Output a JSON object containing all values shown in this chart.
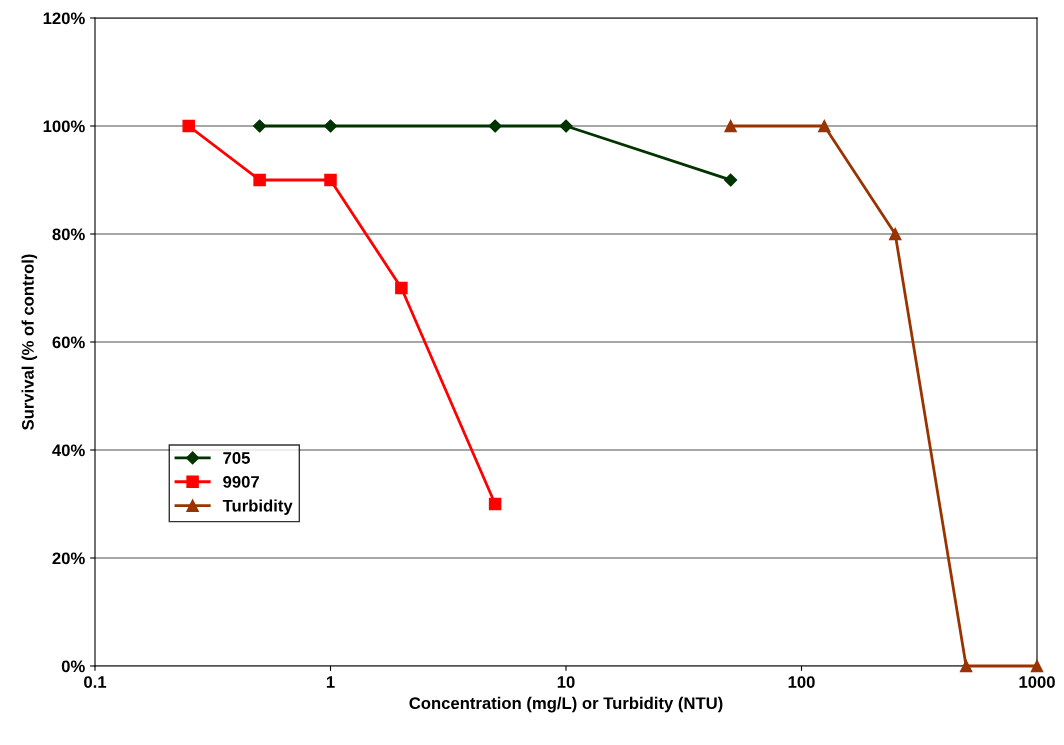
{
  "chart_data": {
    "type": "line",
    "xlabel": "Concentration (mg/L) or Turbidity (NTU)",
    "ylabel": "Survival (% of control)",
    "log": "x",
    "xlim": [
      0.1,
      1000
    ],
    "xticks": [
      0.1,
      1,
      10,
      100,
      1000
    ],
    "ylim": [
      0,
      120
    ],
    "yticks": [
      {
        "value": 0,
        "label": "0%"
      },
      {
        "value": 20,
        "label": "20%"
      },
      {
        "value": 40,
        "label": "40%"
      },
      {
        "value": 60,
        "label": "60%"
      },
      {
        "value": 80,
        "label": "80%"
      },
      {
        "value": 100,
        "label": "100%"
      },
      {
        "value": 120,
        "label": "120%"
      }
    ],
    "grid": "y",
    "legend": "bottom left",
    "line_style": "solid",
    "series": [
      {
        "name": "705",
        "color": "#003300",
        "marker": "diamond",
        "x": [
          0.5,
          1,
          5,
          10,
          50
        ],
        "values": [
          100,
          100,
          100,
          100,
          90
        ]
      },
      {
        "name": "9907",
        "color": "#ff0000",
        "marker": "square",
        "x": [
          0.25,
          0.5,
          1,
          2,
          5
        ],
        "values": [
          100,
          90,
          90,
          70,
          30
        ]
      },
      {
        "name": "Turbidity",
        "color": "#993300",
        "marker": "triangle",
        "x": [
          50,
          125,
          250,
          500,
          1000
        ],
        "values": [
          100,
          100,
          80,
          0,
          0
        ]
      }
    ]
  }
}
